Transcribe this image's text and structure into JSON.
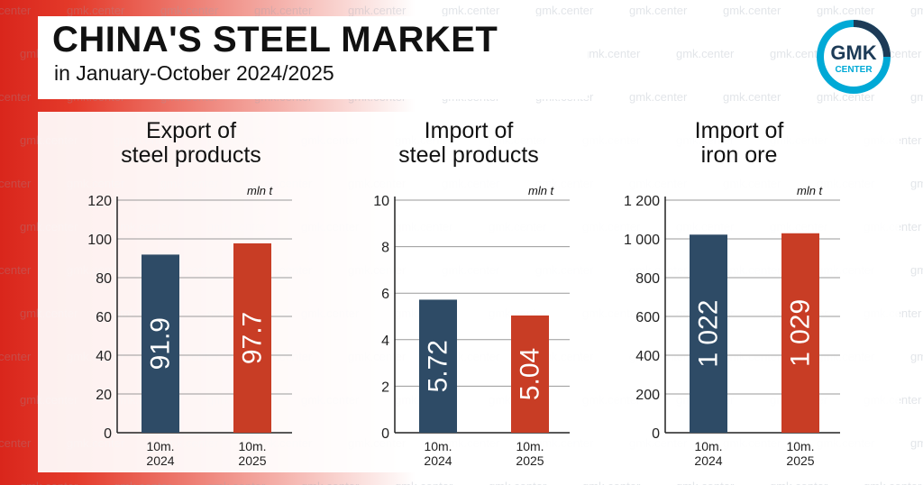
{
  "header": {
    "title": "CHINA'S STEEL MARKET",
    "subtitle": "in January-October 2024/2025"
  },
  "logo": {
    "line1": "GMK",
    "line2": "CENTER",
    "icon": "gmk-center-logo"
  },
  "watermark": {
    "text": "gmk.center"
  },
  "colors": {
    "y2024": "#2e4b66",
    "y2025": "#c83d25",
    "accent": "#00a9d6",
    "background_red": "#d9261c"
  },
  "chart_data": [
    {
      "type": "bar",
      "title": [
        "Export of",
        "steel products"
      ],
      "unit": "mln t",
      "categories": [
        [
          "10m.",
          "2024"
        ],
        [
          "10m.",
          "2025"
        ]
      ],
      "values": [
        91.9,
        97.7
      ],
      "value_labels": [
        "91.9",
        "97.7"
      ],
      "yticks": [
        "0",
        "20",
        "40",
        "60",
        "80",
        "100",
        "120"
      ],
      "ylim": [
        0,
        120
      ],
      "grid": true
    },
    {
      "type": "bar",
      "title": [
        "Import of",
        "steel products"
      ],
      "unit": "mln t",
      "categories": [
        [
          "10m.",
          "2024"
        ],
        [
          "10m.",
          "2025"
        ]
      ],
      "values": [
        5.72,
        5.04
      ],
      "value_labels": [
        "5.72",
        "5.04"
      ],
      "yticks": [
        "0",
        "2",
        "4",
        "6",
        "8",
        "10"
      ],
      "ylim": [
        0,
        10
      ],
      "grid": true
    },
    {
      "type": "bar",
      "title": [
        "Import of",
        "iron ore"
      ],
      "unit": "mln t",
      "categories": [
        [
          "10m.",
          "2024"
        ],
        [
          "10m.",
          "2025"
        ]
      ],
      "values": [
        1022,
        1029
      ],
      "value_labels": [
        "1 022",
        "1 029"
      ],
      "yticks": [
        "0",
        "200",
        "400",
        "600",
        "800",
        "1 000",
        "1 200"
      ],
      "ylim": [
        0,
        1200
      ],
      "grid": true
    }
  ]
}
